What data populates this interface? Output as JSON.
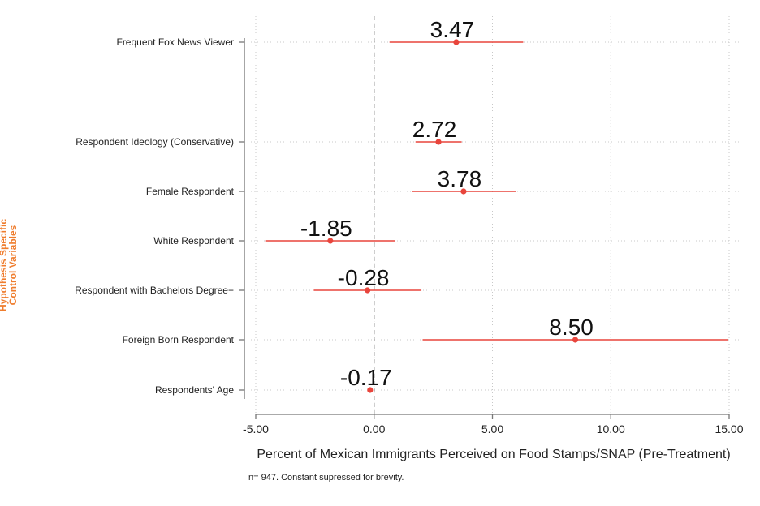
{
  "chart_data": {
    "type": "scatter",
    "subtype": "coefficient-plot",
    "xlabel": "Percent of Mexican Immigrants Perceived on Food Stamps/SNAP (Pre-Treatment)",
    "ylabel_lines": [
      "Hypothesis Specific",
      "Control Variables"
    ],
    "xlim": [
      -5,
      15
    ],
    "xticks": [
      -5,
      0,
      5,
      10,
      15
    ],
    "xtick_labels": [
      "-5.00",
      "0.00",
      "5.00",
      "10.00",
      "15.00"
    ],
    "reference_line": 0,
    "grid": "dotted",
    "point_color": "#e8453c",
    "ylabel_color": "#ef7d2e",
    "series": [
      {
        "label": "Frequent Fox News Viewer",
        "estimate": 3.47,
        "ci": [
          0.65,
          6.3
        ],
        "value_label": "3.47"
      },
      {
        "label": "Respondent Ideology (Conservative)",
        "estimate": 2.72,
        "ci": [
          1.75,
          3.7
        ],
        "value_label": "2.72"
      },
      {
        "label": "Female Respondent",
        "estimate": 3.78,
        "ci": [
          1.6,
          6.0
        ],
        "value_label": "3.78"
      },
      {
        "label": "White Respondent",
        "estimate": -1.85,
        "ci": [
          -4.6,
          0.9
        ],
        "value_label": "-1.85"
      },
      {
        "label": "Respondent with Bachelors Degree+",
        "estimate": -0.28,
        "ci": [
          -2.55,
          2.0
        ],
        "value_label": "-0.28"
      },
      {
        "label": "Foreign Born Respondent",
        "estimate": 8.5,
        "ci": [
          2.05,
          14.95
        ],
        "value_label": "8.50"
      },
      {
        "label": "Respondents' Age",
        "estimate": -0.17,
        "ci": [
          -0.22,
          -0.12
        ],
        "value_label": "-0.17"
      }
    ]
  },
  "footnote": "n= 947. Constant supressed for brevity."
}
